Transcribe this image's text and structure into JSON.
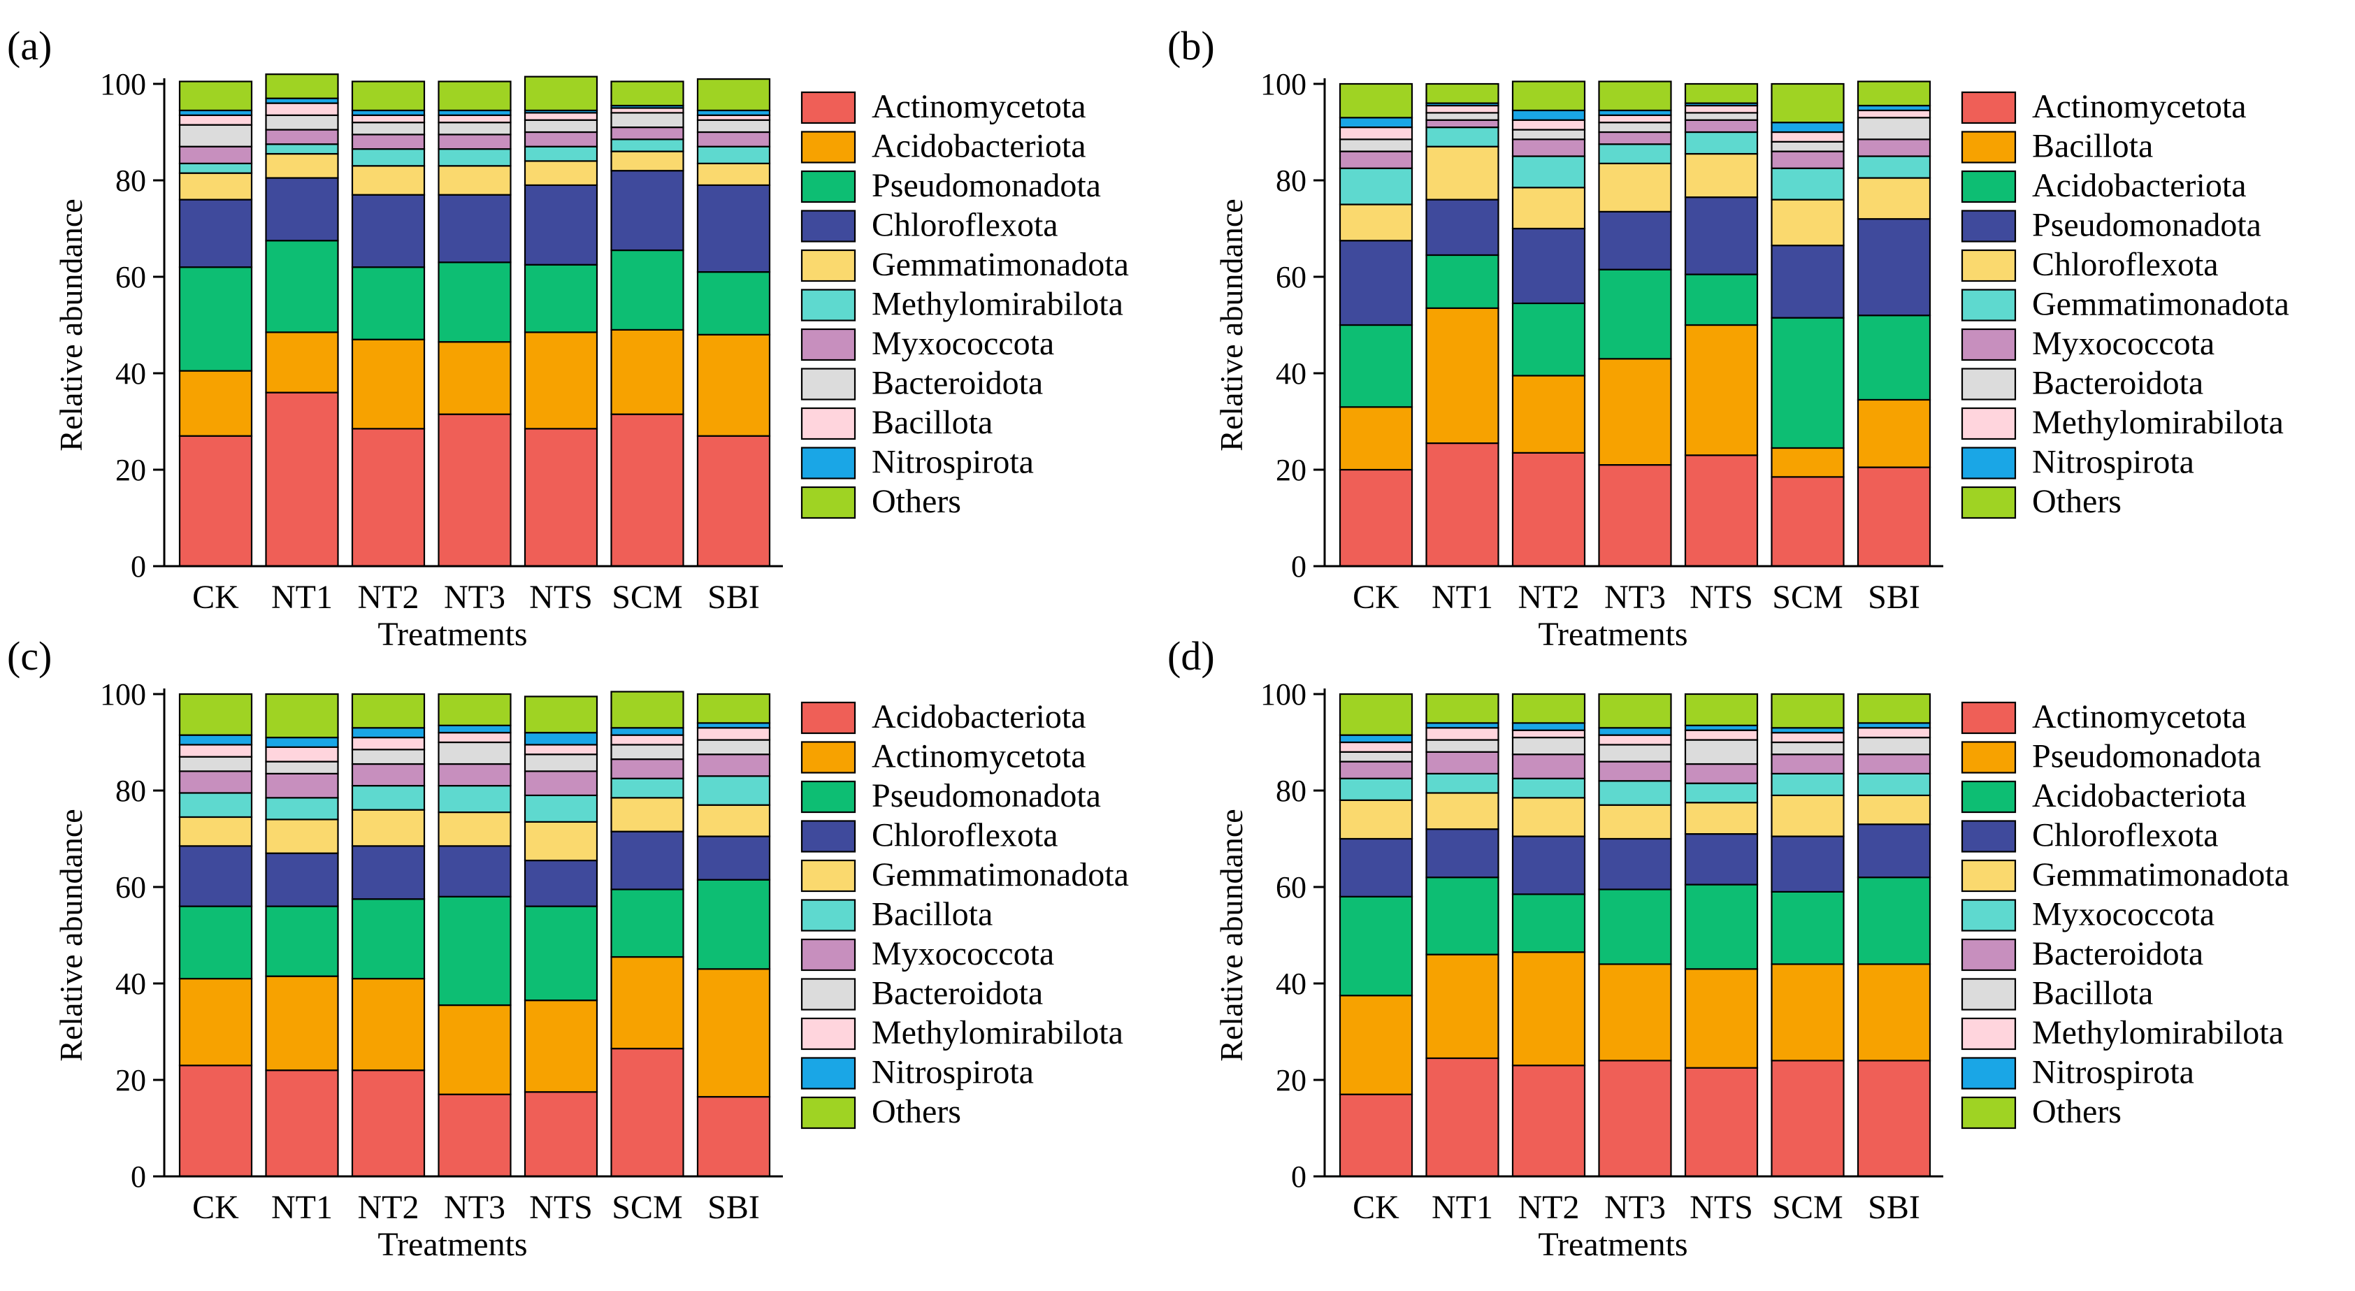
{
  "chart_data": [
    {
      "panel_label": "(a)",
      "type": "bar",
      "stacked": true,
      "xlabel": "Treatments",
      "ylabel": "Relative abundance",
      "ylim": [
        0,
        100
      ],
      "yticks": [
        "0",
        "20",
        "40",
        "60",
        "80",
        "100"
      ],
      "categories": [
        "CK",
        "NT1",
        "NT2",
        "NT3",
        "NTS",
        "SCM",
        "SBI"
      ],
      "legend_position": "right",
      "series": [
        {
          "name": "Actinomycetota",
          "color": "#ef5f57",
          "values": [
            27.0,
            36.0,
            28.5,
            31.5,
            28.5,
            31.5,
            27.0
          ]
        },
        {
          "name": "Acidobacteriota",
          "color": "#f7a200",
          "values": [
            13.5,
            12.5,
            18.5,
            15.0,
            20.0,
            17.5,
            21.0
          ]
        },
        {
          "name": "Pseudomonadota",
          "color": "#0dbe73",
          "values": [
            21.5,
            19.0,
            15.0,
            16.5,
            14.0,
            16.5,
            13.0
          ]
        },
        {
          "name": "Chloroflexota",
          "color": "#3f4a9c",
          "values": [
            14.0,
            13.0,
            15.0,
            14.0,
            16.5,
            16.5,
            18.0
          ]
        },
        {
          "name": "Gemmatimonadota",
          "color": "#fad96e",
          "values": [
            5.5,
            5.0,
            6.0,
            6.0,
            5.0,
            4.0,
            4.5
          ]
        },
        {
          "name": "Methylomirabilota",
          "color": "#5ed9cf",
          "values": [
            2.0,
            2.0,
            3.5,
            3.5,
            3.0,
            2.5,
            3.5
          ]
        },
        {
          "name": "Myxococcota",
          "color": "#c78fbe",
          "values": [
            3.5,
            3.0,
            3.0,
            3.0,
            3.0,
            2.5,
            3.0
          ]
        },
        {
          "name": "Bacteroidota",
          "color": "#dcdcdc",
          "values": [
            4.5,
            3.0,
            2.5,
            2.5,
            2.5,
            3.0,
            2.5
          ]
        },
        {
          "name": "Bacillota",
          "color": "#ffd5dd",
          "values": [
            2.0,
            2.5,
            1.5,
            1.5,
            1.5,
            1.0,
            1.0
          ]
        },
        {
          "name": "Nitrospirota",
          "color": "#1aa6e6",
          "values": [
            1.0,
            1.0,
            1.0,
            1.0,
            0.5,
            0.5,
            1.0
          ]
        },
        {
          "name": "Others",
          "color": "#9fd323",
          "values": [
            6.0,
            5.0,
            6.0,
            6.0,
            7.0,
            5.0,
            6.5
          ]
        }
      ]
    },
    {
      "panel_label": "(b)",
      "type": "bar",
      "stacked": true,
      "xlabel": "Treatments",
      "ylabel": "Relative abundance",
      "ylim": [
        0,
        100
      ],
      "yticks": [
        "0",
        "20",
        "40",
        "60",
        "80",
        "100"
      ],
      "categories": [
        "CK",
        "NT1",
        "NT2",
        "NT3",
        "NTS",
        "SCM",
        "SBI"
      ],
      "legend_position": "right",
      "series": [
        {
          "name": "Actinomycetota",
          "color": "#ef5f57",
          "values": [
            20.0,
            25.5,
            23.5,
            21.0,
            23.0,
            18.5,
            20.5
          ]
        },
        {
          "name": "Bacillota",
          "color": "#f7a200",
          "values": [
            13.0,
            28.0,
            16.0,
            22.0,
            27.0,
            6.0,
            14.0
          ]
        },
        {
          "name": "Acidobacteriota",
          "color": "#0dbe73",
          "values": [
            17.0,
            11.0,
            15.0,
            18.5,
            10.5,
            27.0,
            17.5
          ]
        },
        {
          "name": "Pseudomonadota",
          "color": "#3f4a9c",
          "values": [
            17.5,
            11.5,
            15.5,
            12.0,
            16.0,
            15.0,
            20.0
          ]
        },
        {
          "name": "Chloroflexota",
          "color": "#fad96e",
          "values": [
            7.5,
            11.0,
            8.5,
            10.0,
            9.0,
            9.5,
            8.5
          ]
        },
        {
          "name": "Gemmatimonadota",
          "color": "#5ed9cf",
          "values": [
            7.5,
            4.0,
            6.5,
            4.0,
            4.5,
            6.5,
            4.5
          ]
        },
        {
          "name": "Myxococcota",
          "color": "#c78fbe",
          "values": [
            3.5,
            1.5,
            3.5,
            2.5,
            2.5,
            3.5,
            3.5
          ]
        },
        {
          "name": "Bacteroidota",
          "color": "#dcdcdc",
          "values": [
            2.5,
            1.5,
            2.0,
            2.0,
            1.5,
            2.0,
            4.5
          ]
        },
        {
          "name": "Methylomirabilota",
          "color": "#ffd5dd",
          "values": [
            2.5,
            1.5,
            2.0,
            1.5,
            1.5,
            2.0,
            1.5
          ]
        },
        {
          "name": "Nitrospirota",
          "color": "#1aa6e6",
          "values": [
            2.0,
            0.5,
            2.0,
            1.0,
            0.5,
            2.0,
            1.0
          ]
        },
        {
          "name": "Others",
          "color": "#9fd323",
          "values": [
            7.0,
            4.0,
            6.0,
            6.0,
            4.0,
            8.0,
            5.0
          ]
        }
      ]
    },
    {
      "panel_label": "(c)",
      "type": "bar",
      "stacked": true,
      "xlabel": "Treatments",
      "ylabel": "Relative abundance",
      "ylim": [
        0,
        100
      ],
      "yticks": [
        "0",
        "20",
        "40",
        "60",
        "80",
        "100"
      ],
      "categories": [
        "CK",
        "NT1",
        "NT2",
        "NT3",
        "NTS",
        "SCM",
        "SBI"
      ],
      "legend_position": "right",
      "series": [
        {
          "name": "Acidobacteriota",
          "color": "#ef5f57",
          "values": [
            23.0,
            22.0,
            22.0,
            17.0,
            17.5,
            26.5,
            16.5
          ]
        },
        {
          "name": "Actinomycetota",
          "color": "#f7a200",
          "values": [
            18.0,
            19.5,
            19.0,
            18.5,
            19.0,
            19.0,
            26.5
          ]
        },
        {
          "name": "Pseudomonadota",
          "color": "#0dbe73",
          "values": [
            15.0,
            14.5,
            16.5,
            22.5,
            19.5,
            14.0,
            18.5
          ]
        },
        {
          "name": "Chloroflexota",
          "color": "#3f4a9c",
          "values": [
            12.5,
            11.0,
            11.0,
            10.5,
            9.5,
            12.0,
            9.0
          ]
        },
        {
          "name": "Gemmatimonadota",
          "color": "#fad96e",
          "values": [
            6.0,
            7.0,
            7.5,
            7.0,
            8.0,
            7.0,
            6.5
          ]
        },
        {
          "name": "Bacillota",
          "color": "#5ed9cf",
          "values": [
            5.0,
            4.5,
            5.0,
            5.5,
            5.5,
            4.0,
            6.0
          ]
        },
        {
          "name": "Myxococcota",
          "color": "#c78fbe",
          "values": [
            4.5,
            5.0,
            4.5,
            4.5,
            5.0,
            4.0,
            4.5
          ]
        },
        {
          "name": "Bacteroidota",
          "color": "#dcdcdc",
          "values": [
            3.0,
            2.5,
            3.0,
            4.5,
            3.5,
            3.0,
            3.0
          ]
        },
        {
          "name": "Methylomirabilota",
          "color": "#ffd5dd",
          "values": [
            2.5,
            3.0,
            2.5,
            2.0,
            2.0,
            2.0,
            2.5
          ]
        },
        {
          "name": "Nitrospirota",
          "color": "#1aa6e6",
          "values": [
            2.0,
            2.0,
            2.0,
            1.5,
            2.5,
            1.5,
            1.0
          ]
        },
        {
          "name": "Others",
          "color": "#9fd323",
          "values": [
            8.5,
            9.0,
            7.0,
            6.5,
            7.5,
            7.5,
            6.0
          ]
        }
      ]
    },
    {
      "panel_label": "(d)",
      "type": "bar",
      "stacked": true,
      "xlabel": "Treatments",
      "ylabel": "Relative abundance",
      "ylim": [
        0,
        100
      ],
      "yticks": [
        "0",
        "20",
        "40",
        "60",
        "80",
        "100"
      ],
      "categories": [
        "CK",
        "NT1",
        "NT2",
        "NT3",
        "NTS",
        "SCM",
        "SBI"
      ],
      "legend_position": "right",
      "series": [
        {
          "name": "Actinomycetota",
          "color": "#ef5f57",
          "values": [
            17.0,
            24.5,
            23.0,
            24.0,
            22.5,
            24.0,
            24.0
          ]
        },
        {
          "name": "Pseudomonadota",
          "color": "#f7a200",
          "values": [
            20.5,
            21.5,
            23.5,
            20.0,
            20.5,
            20.0,
            20.0
          ]
        },
        {
          "name": "Acidobacteriota",
          "color": "#0dbe73",
          "values": [
            20.5,
            16.0,
            12.0,
            15.5,
            17.5,
            15.0,
            18.0
          ]
        },
        {
          "name": "Chloroflexota",
          "color": "#3f4a9c",
          "values": [
            12.0,
            10.0,
            12.0,
            10.5,
            10.5,
            11.5,
            11.0
          ]
        },
        {
          "name": "Gemmatimonadota",
          "color": "#fad96e",
          "values": [
            8.0,
            7.5,
            8.0,
            7.0,
            6.5,
            8.5,
            6.0
          ]
        },
        {
          "name": "Myxococcota",
          "color": "#5ed9cf",
          "values": [
            4.5,
            4.0,
            4.0,
            5.0,
            4.0,
            4.5,
            4.5
          ]
        },
        {
          "name": "Bacteroidota",
          "color": "#c78fbe",
          "values": [
            3.5,
            4.5,
            5.0,
            4.0,
            4.0,
            4.0,
            4.0
          ]
        },
        {
          "name": "Bacillota",
          "color": "#dcdcdc",
          "values": [
            2.0,
            2.5,
            3.5,
            3.5,
            5.0,
            2.5,
            3.5
          ]
        },
        {
          "name": "Methylomirabilota",
          "color": "#ffd5dd",
          "values": [
            2.0,
            2.5,
            1.5,
            2.0,
            2.0,
            2.0,
            2.0
          ]
        },
        {
          "name": "Nitrospirota",
          "color": "#1aa6e6",
          "values": [
            1.5,
            1.0,
            1.5,
            1.5,
            1.0,
            1.0,
            1.0
          ]
        },
        {
          "name": "Others",
          "color": "#9fd323",
          "values": [
            8.5,
            6.0,
            6.0,
            7.0,
            6.5,
            7.0,
            6.0
          ]
        }
      ]
    }
  ]
}
